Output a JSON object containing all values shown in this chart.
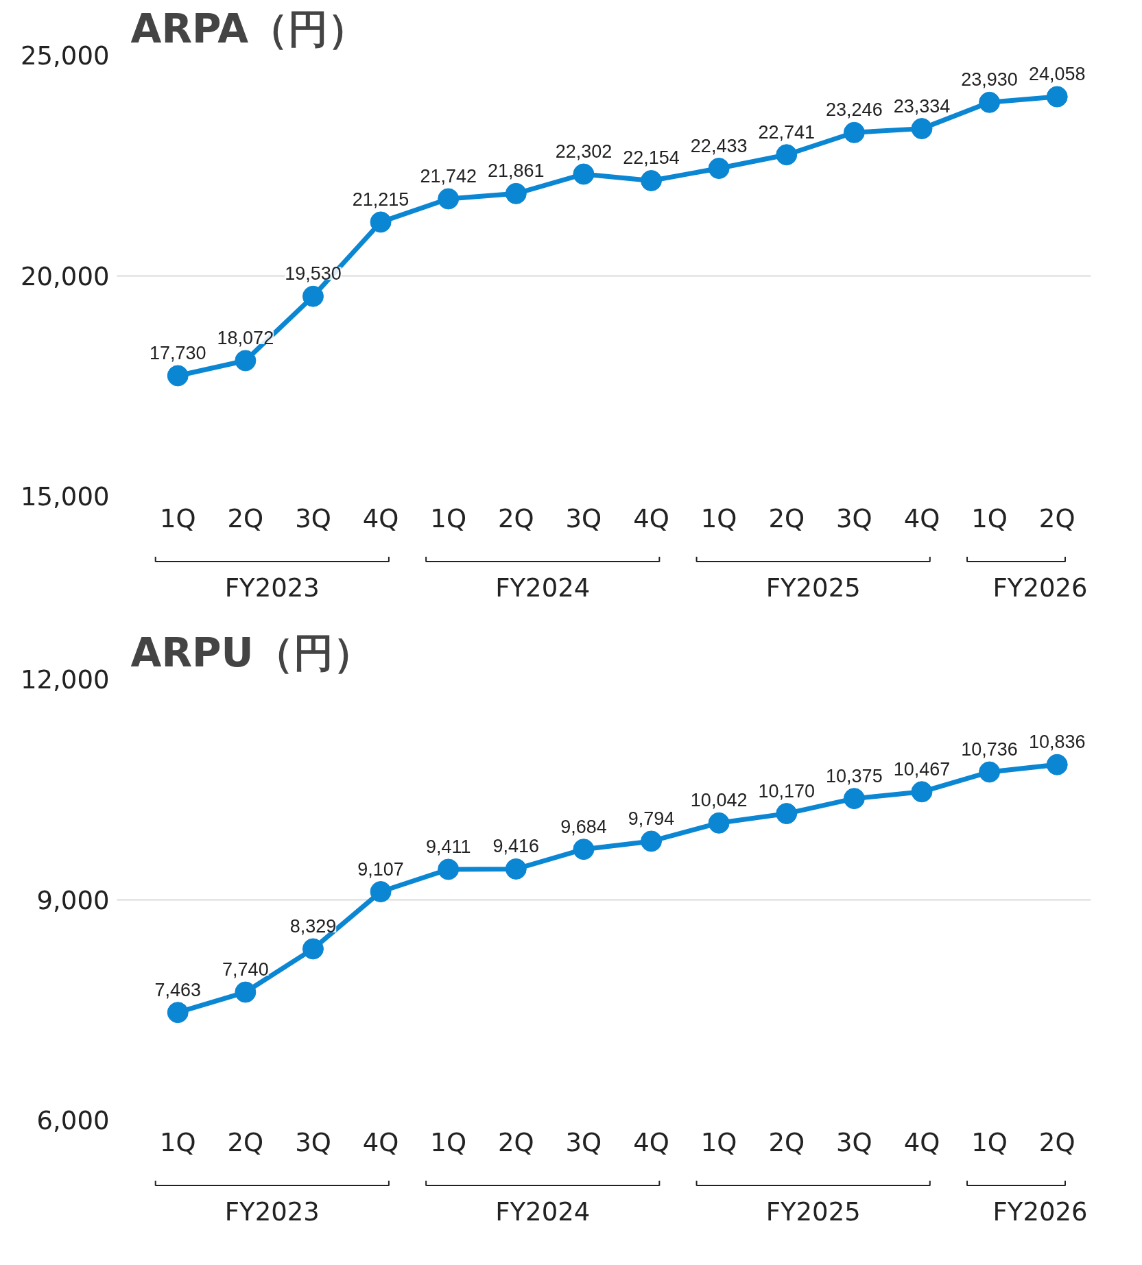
{
  "chart_data": [
    {
      "type": "line",
      "title": "ARPA（円）",
      "categories": [
        "1Q",
        "2Q",
        "3Q",
        "4Q",
        "1Q",
        "2Q",
        "3Q",
        "4Q",
        "1Q",
        "2Q",
        "3Q",
        "4Q",
        "1Q",
        "2Q"
      ],
      "series": [
        {
          "color": "#0b86d3",
          "values": [
            17730,
            18072,
            19530,
            21215,
            21742,
            21861,
            22302,
            22154,
            22433,
            22741,
            23246,
            23334,
            23930,
            24058
          ],
          "value_labels": [
            "17,730",
            "18,072",
            "19,530",
            "21,215",
            "21,742",
            "21,861",
            "22,302",
            "22,154",
            "22,433",
            "22,741",
            "23,246",
            "23,334",
            "23,930",
            "24,058"
          ]
        }
      ],
      "ylim": [
        15000,
        25000
      ],
      "yticks": [
        {
          "value": 15000,
          "label": "15,000"
        },
        {
          "value": 20000,
          "label": "20,000"
        },
        {
          "value": 25000,
          "label": "25,000"
        }
      ],
      "grid": "y",
      "marker": "circle",
      "line_style": "solid",
      "annotations": [
        "FY2023",
        "FY2024",
        "FY2025",
        "FY2026"
      ]
    },
    {
      "type": "line",
      "title": "ARPU（円）",
      "categories": [
        "1Q",
        "2Q",
        "3Q",
        "4Q",
        "1Q",
        "2Q",
        "3Q",
        "4Q",
        "1Q",
        "2Q",
        "3Q",
        "4Q",
        "1Q",
        "2Q"
      ],
      "series": [
        {
          "color": "#0b86d3",
          "values": [
            7463,
            7740,
            8329,
            9107,
            9411,
            9416,
            9684,
            9794,
            10042,
            10170,
            10375,
            10467,
            10736,
            10836
          ],
          "value_labels": [
            "7,463",
            "7,740",
            "8,329",
            "9,107",
            "9,411",
            "9,416",
            "9,684",
            "9,794",
            "10,042",
            "10,170",
            "10,375",
            "10,467",
            "10,736",
            "10,836"
          ]
        }
      ],
      "ylim": [
        6000,
        12000
      ],
      "yticks": [
        {
          "value": 6000,
          "label": "6,000"
        },
        {
          "value": 9000,
          "label": "9,000"
        },
        {
          "value": 12000,
          "label": "12,000"
        }
      ],
      "grid": "y",
      "marker": "circle",
      "line_style": "solid",
      "annotations": [
        "FY2023",
        "FY2024",
        "FY2025",
        "FY2026"
      ]
    }
  ]
}
